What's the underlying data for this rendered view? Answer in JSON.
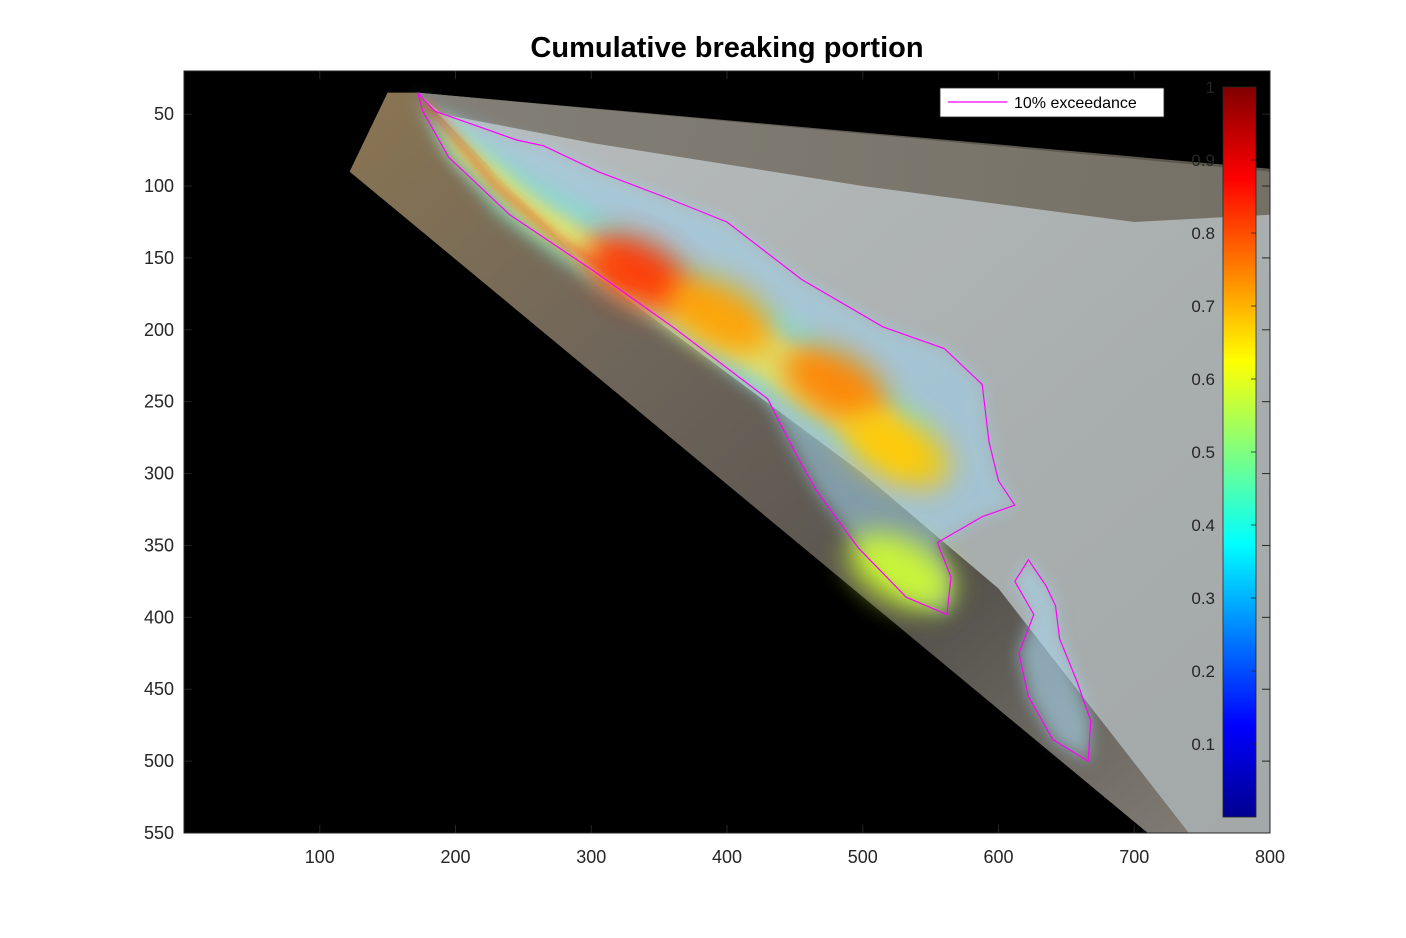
{
  "chart_data": {
    "type": "heatmap",
    "title": "Cumulative breaking portion",
    "xlabel": "",
    "ylabel": "",
    "xlim": [
      0,
      800
    ],
    "ylim": [
      550,
      0
    ],
    "x_ticks": [
      100,
      200,
      300,
      400,
      500,
      600,
      700,
      800
    ],
    "y_ticks": [
      50,
      100,
      150,
      200,
      250,
      300,
      350,
      400,
      450,
      500,
      550
    ],
    "colorbar": {
      "colormap": "jet",
      "range": [
        0,
        1
      ],
      "ticks": [
        0.1,
        0.2,
        0.3,
        0.4,
        0.5,
        0.6,
        0.7,
        0.8,
        0.9,
        1
      ],
      "placement": "inside-right"
    },
    "legend": {
      "placement": "top-right",
      "entries": [
        {
          "label": "10% exceedance",
          "color": "#ff00ff"
        }
      ]
    },
    "background_image": "rectified beach photo (sand, water, sky)",
    "hotspots": [
      {
        "x": 335,
        "y": 160,
        "value": 0.83
      },
      {
        "x": 395,
        "y": 190,
        "value": 0.72
      },
      {
        "x": 480,
        "y": 238,
        "value": 0.75
      },
      {
        "x": 525,
        "y": 283,
        "value": 0.68
      },
      {
        "x": 528,
        "y": 368,
        "value": 0.58
      }
    ],
    "exceedance_contour": [
      [
        172,
        35
      ],
      [
        185,
        48
      ],
      [
        215,
        58
      ],
      [
        245,
        68
      ],
      [
        265,
        72
      ],
      [
        305,
        90
      ],
      [
        355,
        108
      ],
      [
        400,
        125
      ],
      [
        455,
        165
      ],
      [
        515,
        198
      ],
      [
        560,
        213
      ],
      [
        588,
        238
      ],
      [
        593,
        278
      ],
      [
        600,
        305
      ],
      [
        612,
        322
      ],
      [
        588,
        330
      ],
      [
        555,
        348
      ],
      [
        565,
        372
      ],
      [
        562,
        398
      ],
      [
        532,
        386
      ],
      [
        497,
        352
      ],
      [
        466,
        312
      ],
      [
        450,
        285
      ],
      [
        430,
        248
      ],
      [
        360,
        198
      ],
      [
        300,
        158
      ],
      [
        240,
        120
      ],
      [
        195,
        80
      ],
      [
        176,
        48
      ]
    ],
    "exceedance_contour_offshore": [
      [
        612,
        375
      ],
      [
        622,
        360
      ],
      [
        635,
        378
      ],
      [
        642,
        392
      ],
      [
        645,
        415
      ],
      [
        658,
        445
      ],
      [
        668,
        472
      ],
      [
        666,
        500
      ],
      [
        640,
        485
      ],
      [
        622,
        455
      ],
      [
        615,
        425
      ],
      [
        626,
        398
      ]
    ]
  }
}
